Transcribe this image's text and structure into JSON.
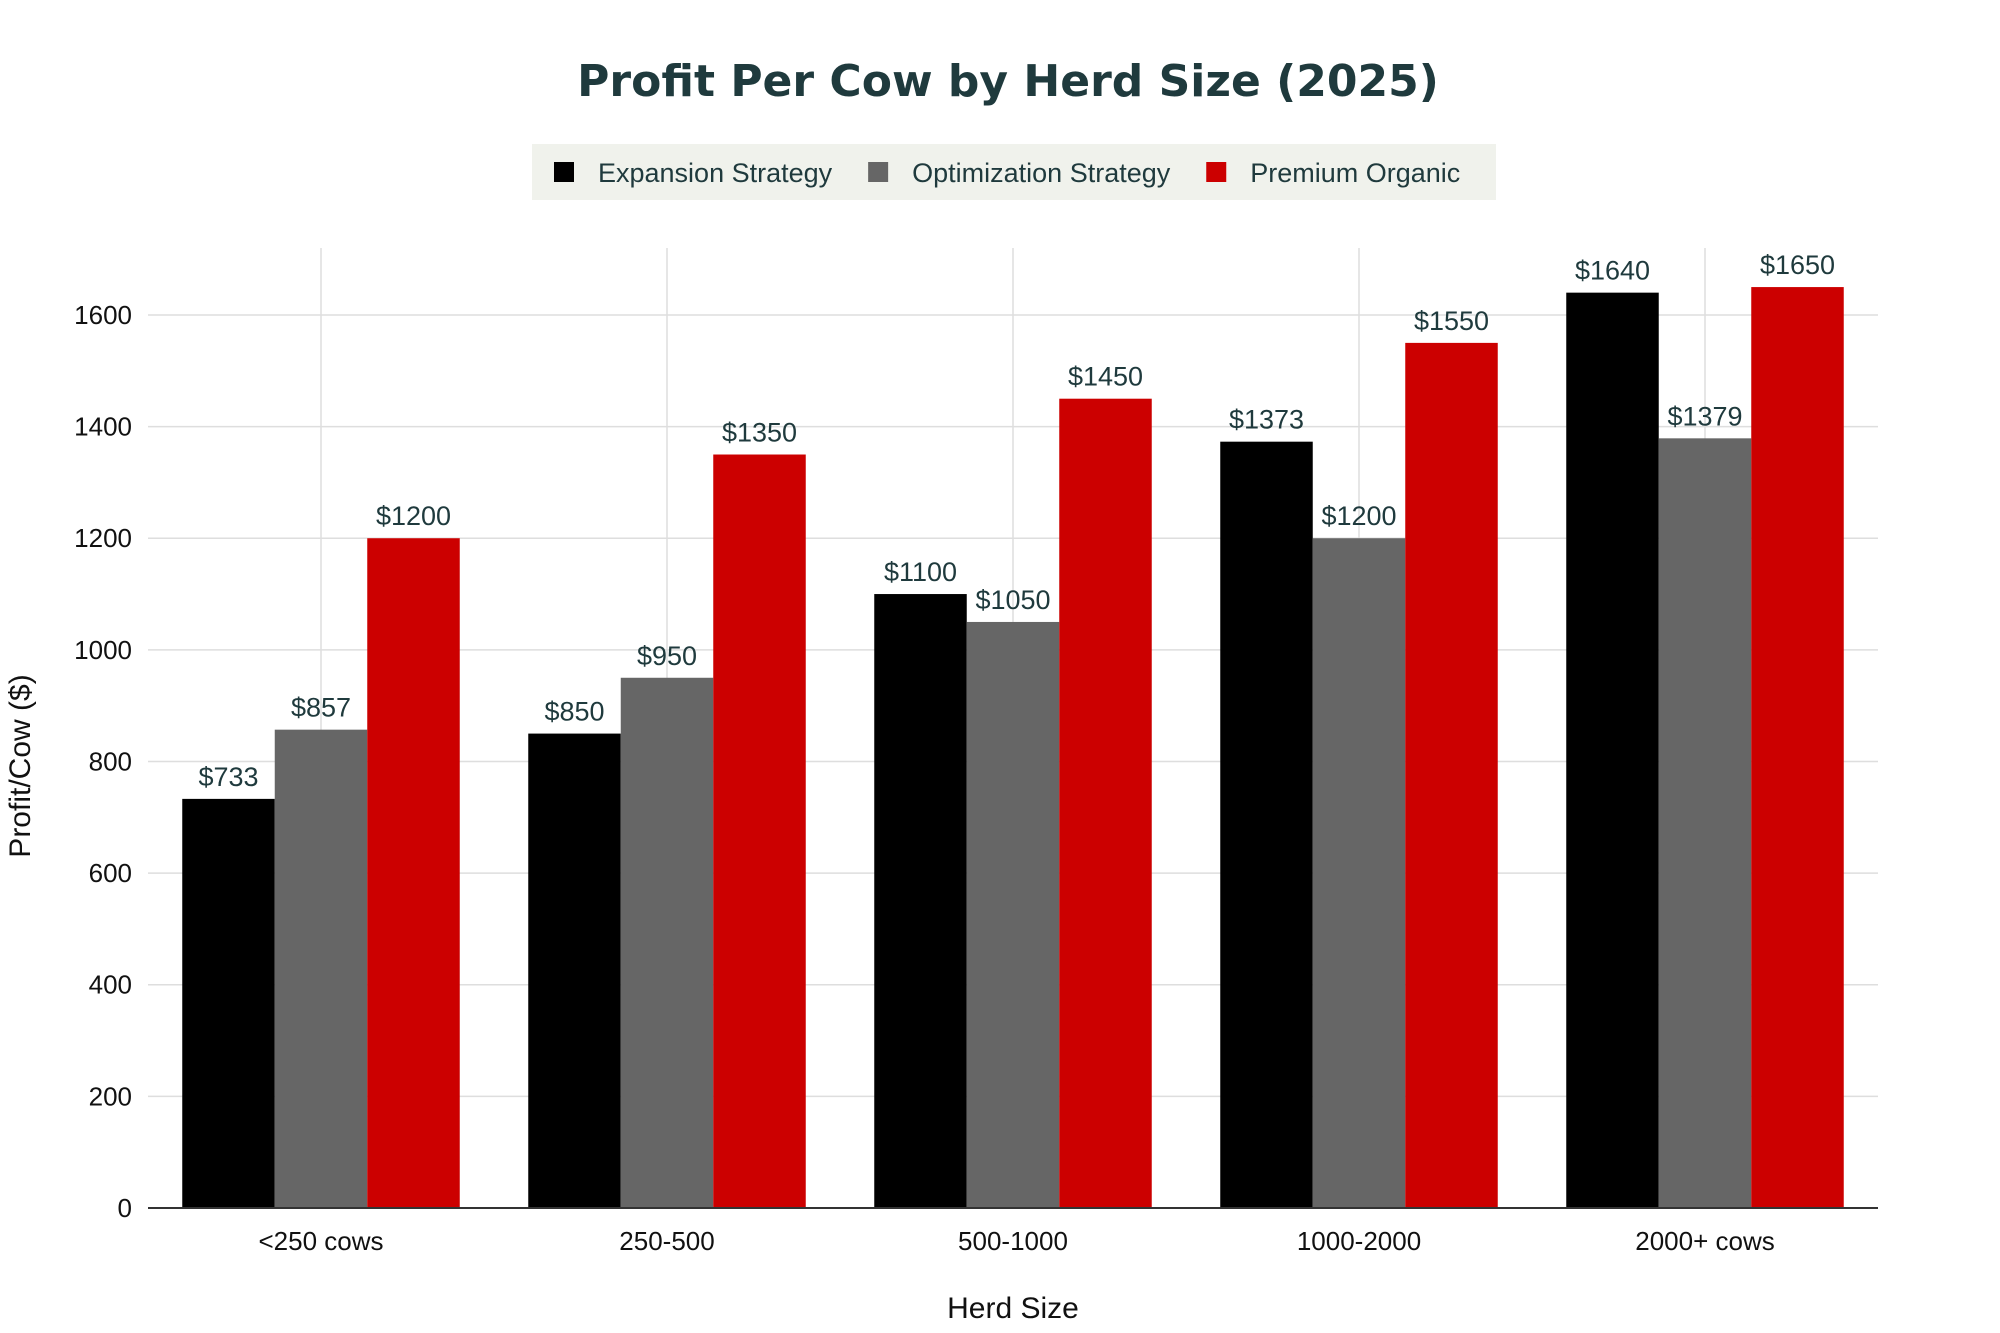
{
  "chart_data": {
    "type": "bar",
    "title": "Profit Per Cow by Herd Size (2025)",
    "xlabel": "Herd Size",
    "ylabel": "Profit/Cow ($)",
    "categories": [
      "<250 cows",
      "250-500",
      "500-1000",
      "1000-2000",
      "2000+ cows"
    ],
    "series": [
      {
        "name": "Expansion Strategy",
        "color": "#000000",
        "values": [
          733,
          850,
          1100,
          1373,
          1640
        ]
      },
      {
        "name": "Optimization Strategy",
        "color": "#666666",
        "values": [
          857,
          950,
          1050,
          1200,
          1379
        ]
      },
      {
        "name": "Premium Organic",
        "color": "#cc0000",
        "values": [
          1200,
          1350,
          1450,
          1550,
          1650
        ]
      }
    ],
    "data_label_prefix": "$",
    "ylim": [
      0,
      1720
    ],
    "yticks": [
      0,
      200,
      400,
      600,
      800,
      1000,
      1200,
      1400,
      1600
    ],
    "grid": true,
    "legend_position": "top-center",
    "legend_background": "#f0f2ec"
  }
}
